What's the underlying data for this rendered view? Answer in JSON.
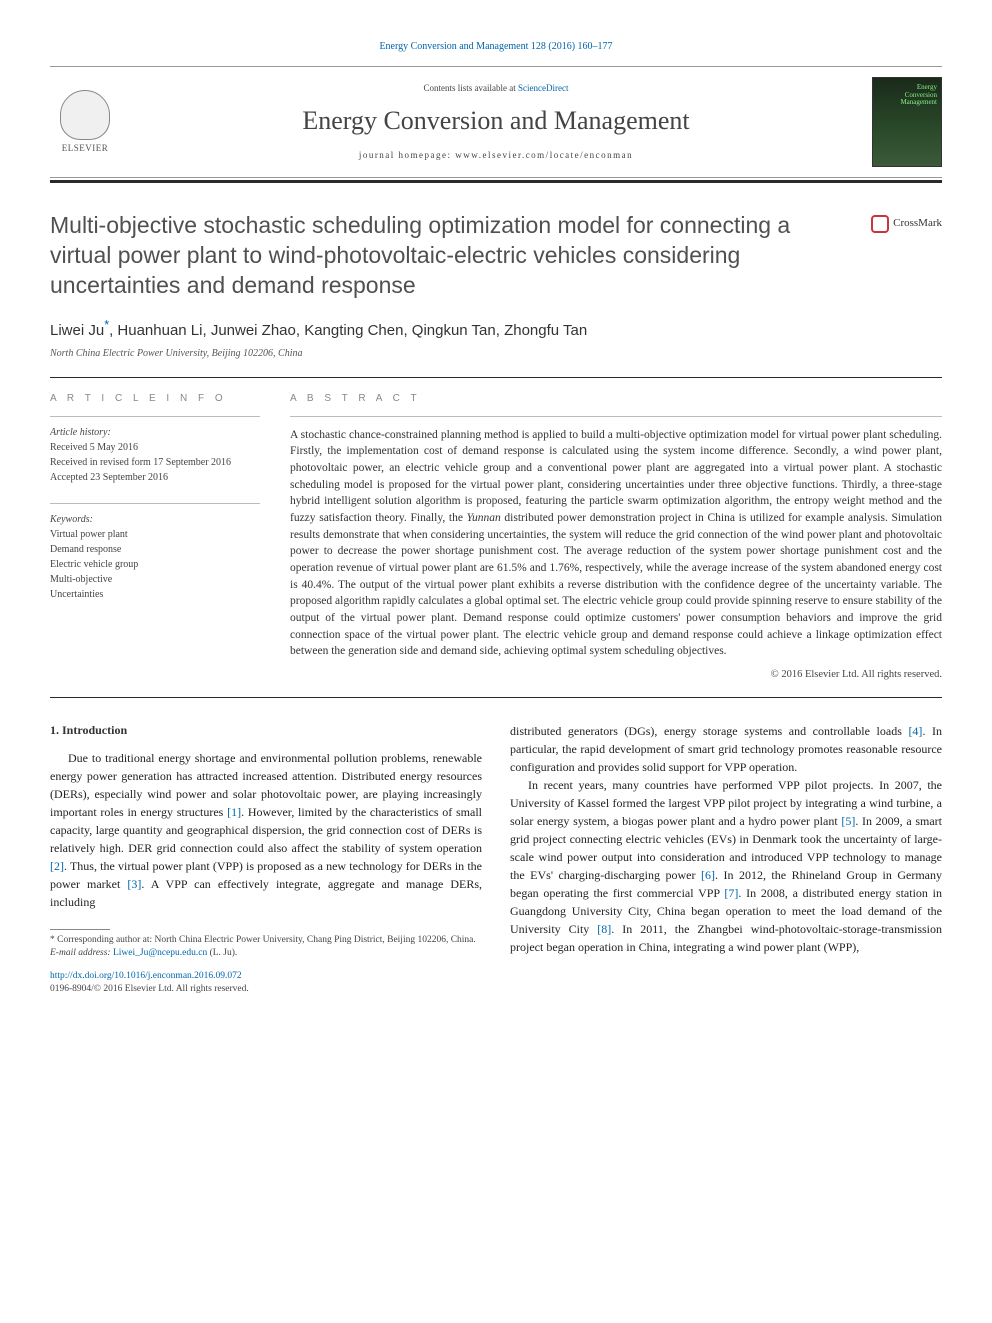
{
  "colors": {
    "link": "#0066aa",
    "text": "#333333",
    "heading_gray": "#505050",
    "rule_dark": "#2a2a2a",
    "crossmark_red": "#cc3333",
    "cover_gradient_top": "#1a2a1a",
    "cover_gradient_bottom": "#3a5a3a"
  },
  "header": {
    "citation": "Energy Conversion and Management 128 (2016) 160–177",
    "contents_prefix": "Contents lists available at ",
    "contents_link": "ScienceDirect",
    "journal_name": "Energy Conversion and Management",
    "homepage": "journal homepage: www.elsevier.com/locate/enconman",
    "publisher": "ELSEVIER",
    "cover_label_line1": "Energy",
    "cover_label_line2": "Conversion",
    "cover_label_line3": "Management"
  },
  "article": {
    "title": "Multi-objective stochastic scheduling optimization model for connecting a virtual power plant to wind-photovoltaic-electric vehicles considering uncertainties and demand response",
    "crossmark": "CrossMark",
    "authors_lead": "Liwei Ju",
    "authors_rest": ", Huanhuan Li, Junwei Zhao, Kangting Chen, Qingkun Tan, Zhongfu Tan",
    "corr_mark": "*",
    "affiliation": "North China Electric Power University, Beijing 102206, China"
  },
  "meta": {
    "info_label": "A R T I C L E   I N F O",
    "history_hdr": "Article history:",
    "received": "Received 5 May 2016",
    "revised": "Received in revised form 17 September 2016",
    "accepted": "Accepted 23 September 2016",
    "keywords_hdr": "Keywords:",
    "keywords": [
      "Virtual power plant",
      "Demand response",
      "Electric vehicle group",
      "Multi-objective",
      "Uncertainties"
    ]
  },
  "abstract": {
    "label": "A B S T R A C T",
    "text": "A stochastic chance-constrained planning method is applied to build a multi-objective optimization model for virtual power plant scheduling. Firstly, the implementation cost of demand response is calculated using the system income difference. Secondly, a wind power plant, photovoltaic power, an electric vehicle group and a conventional power plant are aggregated into a virtual power plant. A stochastic scheduling model is proposed for the virtual power plant, considering uncertainties under three objective functions. Thirdly, a three-stage hybrid intelligent solution algorithm is proposed, featuring the particle swarm optimization algorithm, the entropy weight method and the fuzzy satisfaction theory. Finally, the Yunnan distributed power demonstration project in China is utilized for example analysis. Simulation results demonstrate that when considering uncertainties, the system will reduce the grid connection of the wind power plant and photovoltaic power to decrease the power shortage punishment cost. The average reduction of the system power shortage punishment cost and the operation revenue of virtual power plant are 61.5% and 1.76%, respectively, while the average increase of the system abandoned energy cost is 40.4%. The output of the virtual power plant exhibits a reverse distribution with the confidence degree of the uncertainty variable. The proposed algorithm rapidly calculates a global optimal set. The electric vehicle group could provide spinning reserve to ensure stability of the output of the virtual power plant. Demand response could optimize customers' power consumption behaviors and improve the grid connection space of the virtual power plant. The electric vehicle group and demand response could achieve a linkage optimization effect between the generation side and demand side, achieving optimal system scheduling objectives.",
    "copyright": "© 2016 Elsevier Ltd. All rights reserved."
  },
  "body": {
    "section_heading": "1. Introduction",
    "left_paras": [
      "Due to traditional energy shortage and environmental pollution problems, renewable energy power generation has attracted increased attention. Distributed energy resources (DERs), especially wind power and solar photovoltaic power, are playing increasingly important roles in energy structures [1]. However, limited by the characteristics of small capacity, large quantity and geographical dispersion, the grid connection cost of DERs is relatively high. DER grid connection could also affect the stability of system operation [2]. Thus, the virtual power plant (VPP) is proposed as a new technology for DERs in the power market [3]. A VPP can effectively integrate, aggregate and manage DERs, including"
    ],
    "right_paras": [
      "distributed generators (DGs), energy storage systems and controllable loads [4]. In particular, the rapid development of smart grid technology promotes reasonable resource configuration and provides solid support for VPP operation.",
      "In recent years, many countries have performed VPP pilot projects. In 2007, the University of Kassel formed the largest VPP pilot project by integrating a wind turbine, a solar energy system, a biogas power plant and a hydro power plant [5]. In 2009, a smart grid project connecting electric vehicles (EVs) in Denmark took the uncertainty of large-scale wind power output into consideration and introduced VPP technology to manage the EVs' charging-discharging power [6]. In 2012, the Rhineland Group in Germany began operating the first commercial VPP [7]. In 2008, a distributed energy station in Guangdong University City, China began operation to meet the load demand of the University City [8]. In 2011, the Zhangbei wind-photovoltaic-storage-transmission project began operation in China, integrating a wind power plant (WPP),"
    ]
  },
  "footnote": {
    "corr": "* Corresponding author at: North China Electric Power University, Chang Ping District, Beijing 102206, China.",
    "email_label": "E-mail address: ",
    "email": "Liwei_Ju@ncepu.edu.cn",
    "email_suffix": " (L. Ju).",
    "doi": "http://dx.doi.org/10.1016/j.enconman.2016.09.072",
    "issn": "0196-8904/© 2016 Elsevier Ltd. All rights reserved."
  }
}
